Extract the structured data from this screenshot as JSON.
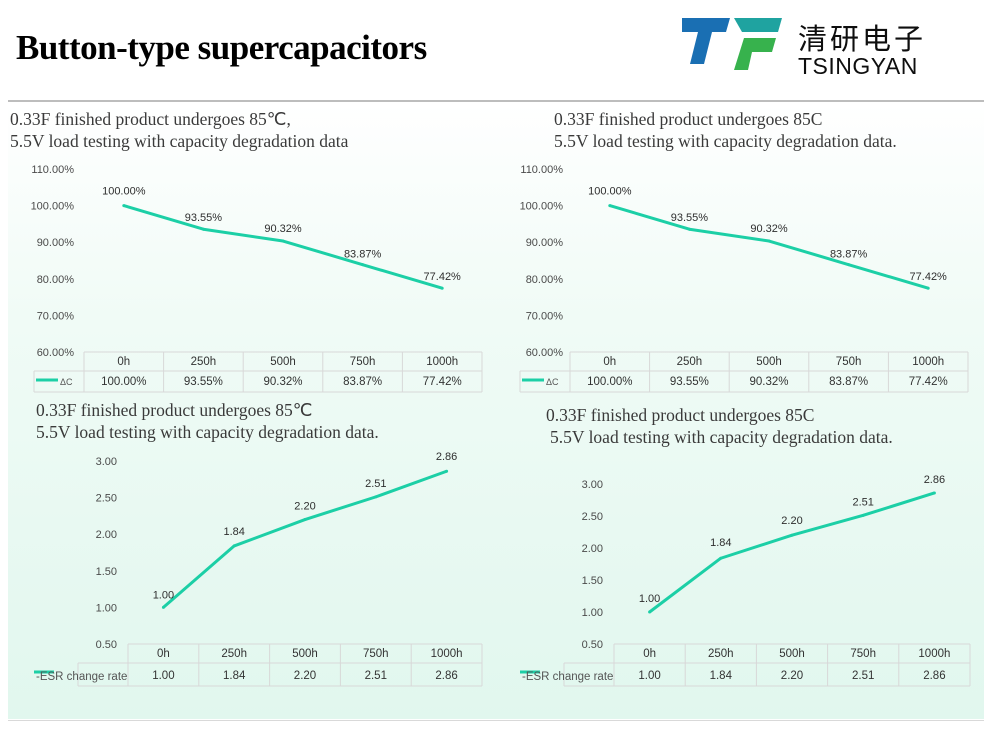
{
  "page": {
    "title": "Button-type supercapacitors",
    "logo": {
      "cn": "清研电子",
      "en": "TSINGYAN",
      "colors": [
        "#1a6fb3",
        "#1fa3a0",
        "#37b24d"
      ]
    }
  },
  "colors": {
    "series": "#1ccfa6",
    "grid": "#d8d8d8",
    "tick": "#4a4a4a"
  },
  "chart_data": [
    {
      "type": "line",
      "title": "0.33F finished product undergoes 85℃,",
      "subtitle": "5.5V load testing with capacity degradation data",
      "categories": [
        "0h",
        "250h",
        "500h",
        "750h",
        "1000h"
      ],
      "series": [
        {
          "name": "ΔC",
          "values": [
            100.0,
            93.55,
            90.32,
            83.87,
            77.42
          ]
        }
      ],
      "data_labels": [
        "100.00%",
        "93.55%",
        "90.32%",
        "83.87%",
        "77.42%"
      ],
      "yticks": [
        "60.00%",
        "70.00%",
        "80.00%",
        "90.00%",
        "100.00%",
        "110.00%"
      ],
      "ylim": [
        60,
        110
      ],
      "data_table": [
        "100.00%",
        "93.55%",
        "90.32%",
        "83.87%",
        "77.42%"
      ],
      "grid": false,
      "legend": "data-table"
    },
    {
      "type": "line",
      "title": "0.33F finished product undergoes 85C",
      "subtitle": "5.5V load testing with capacity degradation data.",
      "categories": [
        "0h",
        "250h",
        "500h",
        "750h",
        "1000h"
      ],
      "series": [
        {
          "name": "ΔC",
          "values": [
            100.0,
            93.55,
            90.32,
            83.87,
            77.42
          ]
        }
      ],
      "data_labels": [
        "100.00%",
        "93.55%",
        "90.32%",
        "83.87%",
        "77.42%"
      ],
      "yticks": [
        "60.00%",
        "70.00%",
        "80.00%",
        "90.00%",
        "100.00%",
        "110.00%"
      ],
      "ylim": [
        60,
        110
      ],
      "data_table": [
        "100.00%",
        "93.55%",
        "90.32%",
        "83.87%",
        "77.42%"
      ],
      "grid": false,
      "legend": "data-table"
    },
    {
      "type": "line",
      "title": "0.33F finished product undergoes 85℃",
      "subtitle": "5.5V load testing with capacity degradation data.",
      "categories": [
        "0h",
        "250h",
        "500h",
        "750h",
        "1000h"
      ],
      "series": [
        {
          "name": "-ESR change rate",
          "values": [
            1.0,
            1.84,
            2.2,
            2.51,
            2.86
          ]
        }
      ],
      "data_labels": [
        "1.00",
        "1.84",
        "2.20",
        "2.51",
        "2.86"
      ],
      "yticks": [
        "0.50",
        "1.00",
        "1.50",
        "2.00",
        "2.50",
        "3.00"
      ],
      "ylim": [
        0.5,
        3.0
      ],
      "data_table": [
        "1.00",
        "1.84",
        "2.20",
        "2.51",
        "2.86"
      ],
      "grid": false,
      "legend": "data-table"
    },
    {
      "type": "line",
      "title": "0.33F finished product undergoes 85C",
      "subtitle": "5.5V load testing with capacity degradation data.",
      "categories": [
        "0h",
        "250h",
        "500h",
        "750h",
        "1000h"
      ],
      "series": [
        {
          "name": "-ESR change rate",
          "values": [
            1.0,
            1.84,
            2.2,
            2.51,
            2.86
          ]
        }
      ],
      "data_labels": [
        "1.00",
        "1.84",
        "2.20",
        "2.51",
        "2.86"
      ],
      "yticks": [
        "0.50",
        "1.00",
        "1.50",
        "2.00",
        "2.50",
        "3.00"
      ],
      "ylim": [
        0.5,
        3.0
      ],
      "data_table": [
        "1.00",
        "1.84",
        "2.20",
        "2.51",
        "2.86"
      ],
      "grid": false,
      "legend": "data-table"
    }
  ]
}
